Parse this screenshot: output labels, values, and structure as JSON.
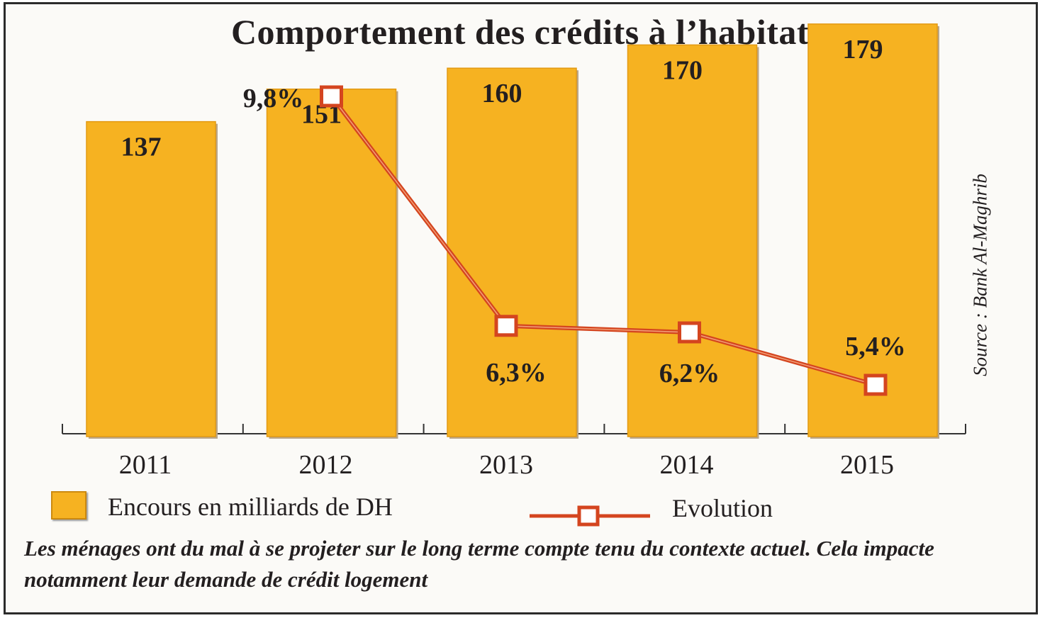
{
  "chart_data": {
    "type": "bar",
    "title": "Comportement des crédits à l’habitat",
    "categories": [
      "2011",
      "2012",
      "2013",
      "2014",
      "2015"
    ],
    "series": [
      {
        "name": "Encours en milliards de DH",
        "type": "bar",
        "values": [
          137,
          151,
          160,
          170,
          179
        ],
        "labels": [
          "137",
          "151",
          "160",
          "170",
          "179"
        ],
        "color": "#f6b221"
      },
      {
        "name": "Evolution",
        "type": "line",
        "values": [
          null,
          9.8,
          6.3,
          6.2,
          5.4
        ],
        "labels": [
          "",
          "9,8%",
          "6,3%",
          "6,2%",
          "5,4%"
        ],
        "color": "#d4451f"
      }
    ],
    "source": "Source : Bank Al-Maghrib",
    "legend_position": "bottom",
    "grid": false
  },
  "caption": "Les ménages ont du mal à se projeter sur le long terme compte tenu du contexte actuel. Cela impacte notamment leur demande de crédit logement"
}
